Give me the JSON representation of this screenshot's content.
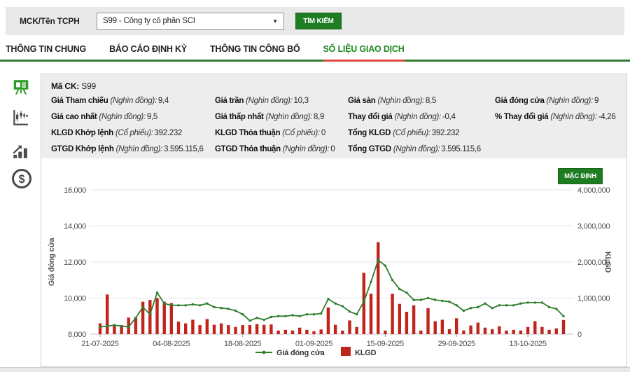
{
  "header": {
    "label": "MCK/Tên TCPH",
    "dropdown_value": "S99 - Công ty cổ phần SCI",
    "search_button": "TÌM KIẾM"
  },
  "tabs": [
    {
      "label": "THÔNG TIN CHUNG",
      "name": "tab-thong-tin-chung",
      "active": false
    },
    {
      "label": "BÁO CÁO ĐỊNH KỲ",
      "name": "tab-bao-cao-dinh-ky",
      "active": false
    },
    {
      "label": "THÔNG TIN CÔNG BỐ",
      "name": "tab-thong-tin-cong-bo",
      "active": false
    },
    {
      "label": "SỐ LIỆU GIAO DỊCH",
      "name": "tab-so-lieu-giao-dich",
      "active": true
    }
  ],
  "sidebar": {
    "icons": [
      "presentation-chart-icon",
      "candlestick-chart-icon",
      "bar-chart-growth-icon",
      "dollar-coin-icon"
    ],
    "active_index": 0
  },
  "info": {
    "ma_ck_label": "Mã CK:",
    "ma_ck_value": "S99",
    "columns": [
      [
        {
          "label": "Giá Tham chiếu",
          "unit": "(Nghìn đồng):",
          "value": "9,4"
        },
        {
          "label": "Giá cao nhất",
          "unit": "(Nghìn đồng):",
          "value": "9,5"
        },
        {
          "label": "KLGD Khớp lệnh",
          "unit": "(Cổ phiếu):",
          "value": "392.232"
        },
        {
          "label": "GTGD Khớp lệnh",
          "unit": "(Nghìn đồng):",
          "value": "3.595.115,6"
        }
      ],
      [
        {
          "label": "Giá trần",
          "unit": "(Nghìn đồng):",
          "value": "10,3"
        },
        {
          "label": "Giá thấp nhất",
          "unit": "(Nghìn đồng):",
          "value": "8,9"
        },
        {
          "label": "KLGD Thỏa thuận",
          "unit": "(Cổ phiếu):",
          "value": "0"
        },
        {
          "label": "GTGD Thỏa thuận",
          "unit": "(Nghìn đồng):",
          "value": "0"
        }
      ],
      [
        {
          "label": "Giá sàn",
          "unit": "(Nghìn đồng):",
          "value": "8,5"
        },
        {
          "label": "Thay đổi giá",
          "unit": "(Nghìn đồng):",
          "value": "-0,4"
        },
        {
          "label": "Tổng KLGD",
          "unit": "(Cổ phiếu):",
          "value": "392.232"
        },
        {
          "label": "Tổng GTGD",
          "unit": "(Nghìn đồng):",
          "value": "3.595.115,6"
        }
      ],
      [
        {
          "label": "Giá đóng cửa",
          "unit": "(Nghìn đồng):",
          "value": "9"
        },
        {
          "label": "% Thay đổi giá",
          "unit": "(Nghìn đồng):",
          "value": "-4,26"
        }
      ]
    ]
  },
  "chart": {
    "default_button": "MẶC ĐỊNH"
  },
  "colors": {
    "accent_green": "#1e7d22",
    "active_tab_green": "#1e8a1e",
    "tab_underline_green": "#2f7d32",
    "active_tab_underline_red": "#e2493d",
    "line_green": "#2d7f2d",
    "bar_red": "#c0241c",
    "info_panel_bg": "#ededed"
  },
  "chart_data": {
    "type": "line+bar",
    "x_dates": [
      "21-07-2025",
      "22-07-2025",
      "23-07-2025",
      "24-07-2025",
      "25-07-2025",
      "28-07-2025",
      "29-07-2025",
      "30-07-2025",
      "31-07-2025",
      "01-08-2025",
      "04-08-2025",
      "05-08-2025",
      "06-08-2025",
      "07-08-2025",
      "08-08-2025",
      "11-08-2025",
      "12-08-2025",
      "13-08-2025",
      "14-08-2025",
      "15-08-2025",
      "18-08-2025",
      "19-08-2025",
      "20-08-2025",
      "21-08-2025",
      "22-08-2025",
      "25-08-2025",
      "26-08-2025",
      "27-08-2025",
      "28-08-2025",
      "29-08-2025",
      "01-09-2025",
      "02-09-2025",
      "03-09-2025",
      "04-09-2025",
      "05-09-2025",
      "08-09-2025",
      "09-09-2025",
      "10-09-2025",
      "11-09-2025",
      "12-09-2025",
      "15-09-2025",
      "16-09-2025",
      "17-09-2025",
      "18-09-2025",
      "19-09-2025",
      "22-09-2025",
      "23-09-2025",
      "24-09-2025",
      "25-09-2025",
      "26-09-2025",
      "29-09-2025",
      "30-09-2025",
      "01-10-2025",
      "02-10-2025",
      "03-10-2025",
      "06-10-2025",
      "07-10-2025",
      "08-10-2025",
      "09-10-2025",
      "10-10-2025",
      "13-10-2025",
      "14-10-2025",
      "15-10-2025",
      "16-10-2025",
      "17-10-2025",
      "20-10-2025"
    ],
    "series": [
      {
        "name": "Giá đóng cửa",
        "type": "line",
        "axis": "left",
        "color": "#2d7f2d",
        "unit": "nghìn đồng",
        "values": [
          8.4,
          8.45,
          8.5,
          8.45,
          8.4,
          8.9,
          9.5,
          9.1,
          10.3,
          9.7,
          9.6,
          9.6,
          9.6,
          9.65,
          9.6,
          9.7,
          9.5,
          9.45,
          9.4,
          9.3,
          9.1,
          8.75,
          8.9,
          8.8,
          8.95,
          9.0,
          9.0,
          9.05,
          9.0,
          9.1,
          9.1,
          9.15,
          9.95,
          9.7,
          9.55,
          9.25,
          9.1,
          9.8,
          10.9,
          12.1,
          11.8,
          11.0,
          10.5,
          10.3,
          9.9,
          9.9,
          10.0,
          9.9,
          9.85,
          9.8,
          9.6,
          9.3,
          9.45,
          9.5,
          9.7,
          9.45,
          9.6,
          9.6,
          9.6,
          9.7,
          9.75,
          9.75,
          9.75,
          9.5,
          9.4,
          9.0
        ]
      },
      {
        "name": "KLGD",
        "type": "bar",
        "axis": "right",
        "color": "#c0241c",
        "unit": "cổ phiếu",
        "values": [
          300000,
          1100000,
          260000,
          250000,
          460000,
          460000,
          900000,
          950000,
          1000000,
          900000,
          860000,
          350000,
          300000,
          400000,
          250000,
          420000,
          260000,
          300000,
          250000,
          200000,
          250000,
          250000,
          280000,
          260000,
          270000,
          100000,
          120000,
          100000,
          180000,
          120000,
          80000,
          130000,
          740000,
          260000,
          100000,
          380000,
          200000,
          1700000,
          1120000,
          2550000,
          100000,
          1120000,
          840000,
          620000,
          800000,
          100000,
          720000,
          360000,
          400000,
          140000,
          440000,
          100000,
          240000,
          320000,
          180000,
          140000,
          220000,
          100000,
          120000,
          100000,
          200000,
          360000,
          200000,
          120000,
          160000,
          392232
        ]
      }
    ],
    "left_axis": {
      "label": "Giá đóng cửa",
      "min": 8000,
      "max": 16000,
      "tick_values": [
        8000,
        10000,
        12000,
        14000,
        16000
      ],
      "ticks": [
        "8,000",
        "10,000",
        "12,000",
        "14,000",
        "16,000"
      ]
    },
    "right_axis": {
      "label": "KLGD",
      "min": 0,
      "max": 4000000,
      "tick_values": [
        0,
        1000000,
        2000000,
        3000000,
        4000000
      ],
      "ticks": [
        "0",
        "1,000,000",
        "2,000,000",
        "3,000,000",
        "4,000,000"
      ]
    },
    "x_tick_indices": [
      0,
      10,
      20,
      30,
      40,
      50,
      60
    ],
    "x_tick_labels": [
      "21-07-2025",
      "04-08-2025",
      "18-08-2025",
      "01-09-2025",
      "15-09-2025",
      "29-09-2025",
      "13-10-2025"
    ],
    "legend": [
      "Giá đóng cửa",
      "KLGD"
    ],
    "grid": true,
    "legend_position": "bottom-center"
  }
}
